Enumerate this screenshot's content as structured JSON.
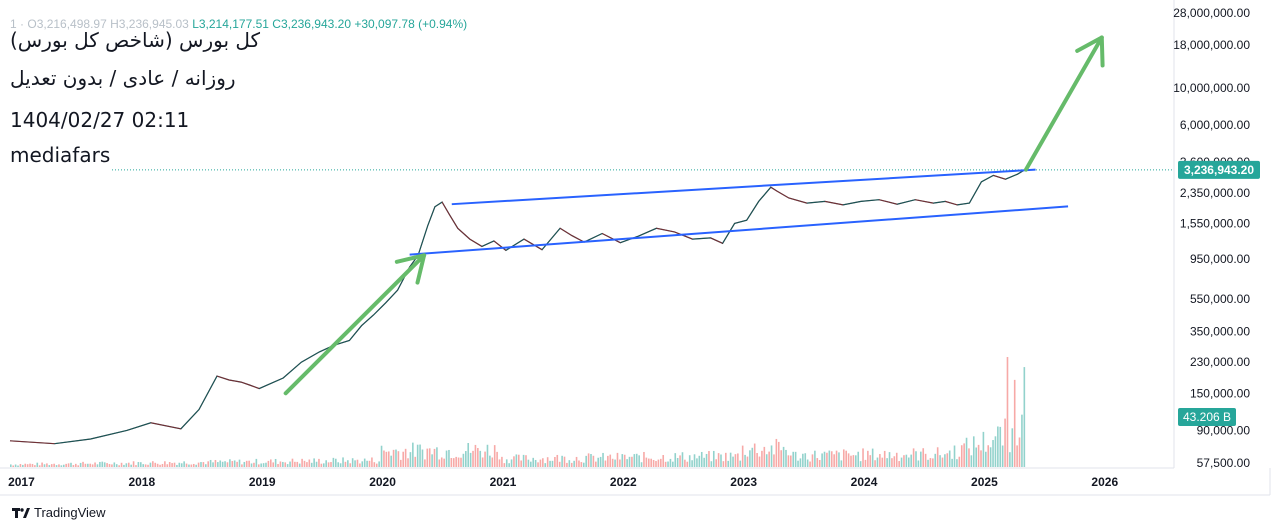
{
  "header": {
    "ohlc_prefix": "1 ·",
    "open": "O3,216,498.97",
    "high": "H3,236,945.03",
    "low": "L3,214,177.51",
    "close": "C3,236,943.20",
    "change": "+30,097.78 (+0.94%)"
  },
  "meta": {
    "title": "کل بورس (شاخص کل بورس)",
    "subtitle": "روزانه / عادی / بدون تعدیل",
    "datetime": "1404/02/27 02:11",
    "watermark": "mediafars"
  },
  "footer": {
    "brand": "TradingView"
  },
  "chart_data": {
    "type": "line",
    "y_scale": "log",
    "ylim": [
      57500,
      28000000
    ],
    "xlim": [
      2017,
      2026.6
    ],
    "y_ticks": [
      "28,000,000.00",
      "18,000,000.00",
      "10,000,000.00",
      "6,000,000.00",
      "3,600,000.00",
      "2,350,000.00",
      "1,550,000.00",
      "950,000.00",
      "550,000.00",
      "350,000.00",
      "230,000.00",
      "150,000.00",
      "90,000.00",
      "57,500.00"
    ],
    "x_ticks": [
      "2017",
      "2018",
      "2019",
      "2020",
      "2021",
      "2022",
      "2023",
      "2024",
      "2025",
      "2026"
    ],
    "last_price_label": "3,236,943.20",
    "last_price": 3236943.2,
    "volume_label": "43.206 B",
    "colors": {
      "up": "#26a69a",
      "down": "#ef5350",
      "channel": "#2962ff",
      "arrow": "#66bb6a",
      "price_line": "#26a69a"
    },
    "series": [
      {
        "type": "price",
        "x": [
          2016.93,
          2017.3,
          2017.6,
          2017.9,
          2018.1,
          2018.35,
          2018.5,
          2018.65,
          2018.75,
          2018.85,
          2018.92,
          2019.0,
          2019.2,
          2019.35,
          2019.5,
          2019.62,
          2019.75,
          2019.85,
          2019.95,
          2020.05,
          2020.15,
          2020.25,
          2020.32,
          2020.4,
          2020.46,
          2020.52,
          2020.58,
          2020.65,
          2020.75,
          2020.85,
          2020.95,
          2021.05,
          2021.2,
          2021.35,
          2021.5,
          2021.6,
          2021.7,
          2021.85,
          2022.0,
          2022.15,
          2022.3,
          2022.45,
          2022.6,
          2022.75,
          2022.85,
          2022.95,
          2023.05,
          2023.15,
          2023.25,
          2023.3,
          2023.4,
          2023.55,
          2023.7,
          2023.85,
          2024.0,
          2024.15,
          2024.3,
          2024.45,
          2024.6,
          2024.7,
          2024.8,
          2024.9,
          2025.0,
          2025.1,
          2025.2,
          2025.3,
          2025.36
        ],
        "y": [
          78000,
          75000,
          80000,
          90000,
          100000,
          92000,
          120000,
          190000,
          180000,
          175000,
          168000,
          160000,
          185000,
          230000,
          265000,
          290000,
          310000,
          380000,
          440000,
          520000,
          620000,
          850000,
          1000000,
          1500000,
          1950000,
          2080000,
          1750000,
          1450000,
          1250000,
          1130000,
          1220000,
          1070000,
          1250000,
          1080000,
          1450000,
          1310000,
          1200000,
          1350000,
          1190000,
          1300000,
          1450000,
          1380000,
          1250000,
          1270000,
          1180000,
          1550000,
          1620000,
          2100000,
          2550000,
          2420000,
          2200000,
          2050000,
          2100000,
          2000000,
          2100000,
          2150000,
          2020000,
          2150000,
          2050000,
          2100000,
          2000000,
          2050000,
          2750000,
          3000000,
          2850000,
          3050000,
          3236943
        ]
      },
      {
        "type": "channel-upper",
        "x": [
          2020.6,
          2025.45
        ],
        "y": [
          2020000,
          3250000
        ]
      },
      {
        "type": "channel-lower",
        "x": [
          2020.25,
          2025.72
        ],
        "y": [
          1010000,
          1960000
        ]
      },
      {
        "type": "arrow-1",
        "x": [
          2019.22,
          2020.37
        ],
        "y": [
          150000,
          1000000
        ]
      },
      {
        "type": "arrow-2",
        "x": [
          2025.37,
          2026.0
        ],
        "y": [
          3250000,
          20000000
        ]
      }
    ]
  }
}
